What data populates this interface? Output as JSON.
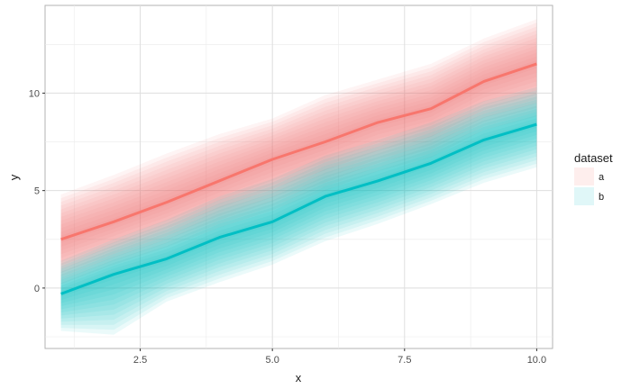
{
  "chart_data": {
    "type": "line",
    "xlabel": "x",
    "ylabel": "y",
    "xlim": [
      0.7,
      10.3
    ],
    "ylim": [
      -3.1,
      14.5
    ],
    "xticks": [
      2.5,
      5.0,
      7.5,
      10.0
    ],
    "xtick_labels": [
      "2.5",
      "5.0",
      "7.5",
      "10.0"
    ],
    "yticks": [
      0,
      5,
      10
    ],
    "ytick_labels": [
      "0",
      "5",
      "10"
    ],
    "grid": true,
    "legend": {
      "title": "dataset",
      "position": "right"
    },
    "x": [
      1,
      2,
      3,
      4,
      5,
      6,
      7,
      8,
      9,
      10
    ],
    "series": [
      {
        "name": "a",
        "color": "#F8766D",
        "values": [
          2.5,
          3.4,
          4.4,
          5.5,
          6.6,
          7.5,
          8.5,
          9.2,
          10.6,
          11.5
        ],
        "band_lower": [
          0.2,
          1.2,
          2.1,
          3.1,
          4.0,
          5.0,
          6.0,
          6.7,
          8.1,
          8.8
        ],
        "band_upper": [
          4.8,
          5.8,
          6.9,
          7.9,
          8.7,
          9.9,
          10.7,
          11.5,
          12.8,
          13.8
        ]
      },
      {
        "name": "b",
        "color": "#00BFC4",
        "values": [
          -0.3,
          0.7,
          1.5,
          2.6,
          3.4,
          4.7,
          5.5,
          6.4,
          7.6,
          8.4
        ],
        "band_lower": [
          -2.2,
          -2.4,
          -0.7,
          0.3,
          1.2,
          2.4,
          3.3,
          4.3,
          5.4,
          6.2
        ],
        "band_upper": [
          1.4,
          2.5,
          3.5,
          4.7,
          5.6,
          6.8,
          7.6,
          8.5,
          9.6,
          10.3
        ]
      }
    ]
  }
}
